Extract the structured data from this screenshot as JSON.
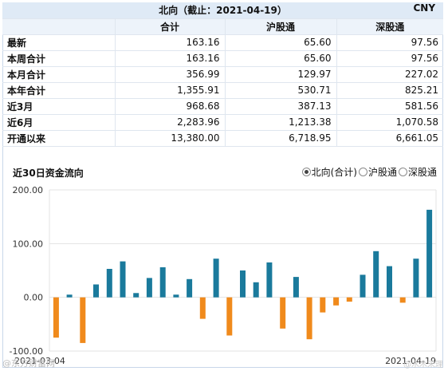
{
  "table": {
    "title": "北向（截止：2021-04-19）",
    "currency": "CNY",
    "headers": [
      "",
      "合计",
      "沪股通",
      "深股通"
    ],
    "rows": [
      {
        "label": "最新",
        "total": "163.16",
        "sh": "65.60",
        "sz": "97.56"
      },
      {
        "label": "本周合计",
        "total": "163.16",
        "sh": "65.60",
        "sz": "97.56"
      },
      {
        "label": "本月合计",
        "total": "356.99",
        "sh": "129.97",
        "sz": "227.02"
      },
      {
        "label": "本年合计",
        "total": "1,355.91",
        "sh": "530.71",
        "sz": "825.21"
      },
      {
        "label": "近3月",
        "total": "968.68",
        "sh": "387.13",
        "sz": "581.56"
      },
      {
        "label": "近6月",
        "total": "2,283.96",
        "sh": "1,213.38",
        "sz": "1,070.58"
      },
      {
        "label": "开通以来",
        "total": "13,380.00",
        "sh": "6,718.95",
        "sz": "6,661.05"
      }
    ]
  },
  "chart": {
    "title": "近30日资金流向",
    "options": [
      {
        "label": "北向(合计)",
        "selected": true
      },
      {
        "label": "沪股通",
        "selected": false
      },
      {
        "label": "深股通",
        "selected": false
      }
    ]
  },
  "colors": {
    "positive": "#1a7a9c",
    "negative": "#f08a1c",
    "grid": "#e3e3e3"
  },
  "chart_data": {
    "type": "bar",
    "x_start_label": "2021-03-04",
    "x_end_label": "2021-04-19",
    "ylim": [
      -100,
      200
    ],
    "yticks": [
      "200.00",
      "100.00",
      "0.00",
      "-100.00"
    ],
    "values": [
      -75,
      5,
      -85,
      24,
      53,
      67,
      8,
      36,
      56,
      5,
      34,
      -40,
      72,
      -71,
      50,
      28,
      65,
      -58,
      38,
      -78,
      -28,
      -15,
      -8,
      42,
      86,
      58,
      -10,
      72,
      163
    ]
  },
  "watermark": "@东方财富网",
  "watermark2": "@水木宋理"
}
